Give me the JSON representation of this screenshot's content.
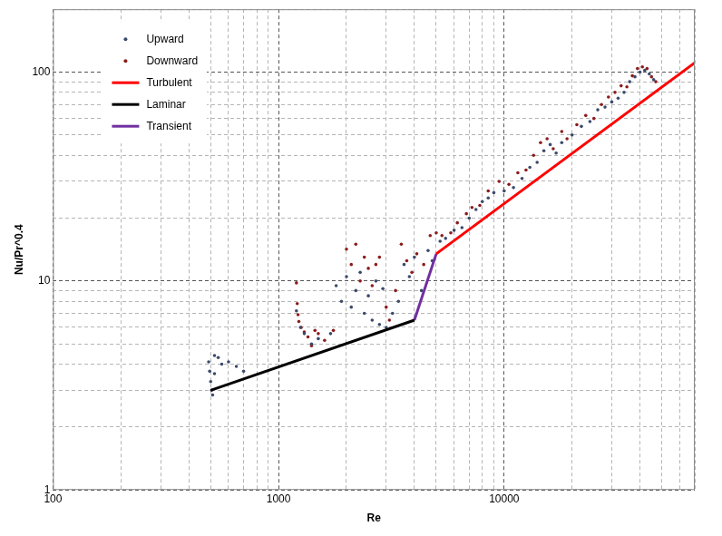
{
  "chart_data": {
    "type": "scatter",
    "x_label": "Re",
    "y_label": "Nu/Pr^0.4",
    "log": true,
    "grid": true,
    "legend": "top-left",
    "xlim": [
      100,
      70000
    ],
    "ylim": [
      1,
      200
    ],
    "xticks": [
      100,
      1000,
      10000
    ],
    "yticks": [
      1,
      10,
      100
    ],
    "series": [
      {
        "name": "Upward",
        "type": "scatter",
        "marker": "circle",
        "color": "#3b4a6b",
        "x": [
          490,
          495,
          500,
          505,
          510,
          520,
          540,
          560,
          600,
          650,
          700,
          520,
          1200,
          1250,
          1300,
          1400,
          1500,
          1700,
          1800,
          1900,
          2000,
          2100,
          2200,
          2300,
          2400,
          2500,
          2600,
          2700,
          2800,
          2900,
          3000,
          3200,
          3400,
          3600,
          3800,
          4000,
          4300,
          4600,
          4800,
          5200,
          5500,
          6000,
          6500,
          7000,
          7500,
          8000,
          8500,
          9000,
          10000,
          11000,
          12000,
          13000,
          14000,
          15000,
          16000,
          17000,
          18000,
          20000,
          22000,
          24000,
          26000,
          28000,
          30000,
          32000,
          34000,
          36000,
          38000,
          40000,
          42000,
          44000,
          46000
        ],
        "y": [
          4.1,
          3.7,
          3.3,
          3.0,
          2.85,
          4.4,
          4.3,
          4.0,
          4.1,
          3.9,
          3.7,
          3.6,
          7.2,
          6.0,
          5.6,
          5.0,
          5.3,
          5.6,
          9.5,
          8.0,
          10.5,
          7.5,
          9.0,
          11.0,
          7.0,
          8.5,
          6.5,
          10.0,
          6.2,
          9.2,
          6.0,
          7.0,
          8.0,
          12.0,
          10.5,
          13.0,
          9.0,
          14.0,
          12.5,
          15.5,
          16,
          17.5,
          18,
          20,
          22,
          24,
          25,
          26.5,
          27,
          28,
          31,
          35,
          37,
          42,
          45,
          41,
          46,
          50,
          55,
          58,
          66,
          68,
          72,
          75,
          80,
          90,
          95,
          100,
          102,
          98,
          92
        ]
      },
      {
        "name": "Downward",
        "type": "scatter",
        "marker": "circle",
        "color": "#8b1c1c",
        "x": [
          1200,
          1210,
          1220,
          1230,
          1260,
          1300,
          1350,
          1400,
          1450,
          1500,
          1600,
          1750,
          2000,
          2100,
          2200,
          2300,
          2400,
          2500,
          2600,
          2700,
          2800,
          3000,
          3100,
          3300,
          3500,
          3700,
          3900,
          4100,
          4400,
          4700,
          5000,
          5300,
          5800,
          6200,
          6800,
          7200,
          7800,
          8500,
          9500,
          10500,
          11500,
          12500,
          13500,
          14500,
          15500,
          16500,
          18000,
          19000,
          21000,
          23000,
          25000,
          27000,
          29000,
          31000,
          33000,
          35000,
          37000,
          39000,
          41000,
          43000,
          45000,
          47000
        ],
        "y": [
          9.8,
          7.8,
          6.9,
          6.4,
          6.0,
          5.7,
          5.4,
          4.9,
          5.8,
          5.6,
          5.2,
          5.8,
          14.2,
          12,
          15,
          10,
          13,
          11.5,
          9.5,
          12,
          13,
          7.5,
          6.5,
          9,
          15,
          12.5,
          11,
          13.5,
          12,
          16.5,
          17,
          16.5,
          17,
          19,
          21,
          22.5,
          23,
          27,
          30,
          29,
          33,
          34,
          40,
          46,
          48,
          43,
          52,
          48,
          56,
          62,
          60,
          70,
          76,
          80,
          86,
          85,
          96,
          104,
          106,
          104,
          95,
          90
        ]
      },
      {
        "name": "Turbulent",
        "type": "line",
        "line_style": "solid",
        "color": "#ff0000",
        "x": [
          5000,
          70000
        ],
        "y": [
          13.5,
          111
        ]
      },
      {
        "name": "Laminar",
        "type": "line",
        "line_style": "solid",
        "color": "#000000",
        "x": [
          500,
          4000
        ],
        "y": [
          3.0,
          6.5
        ]
      },
      {
        "name": "Transient",
        "type": "line",
        "line_style": "solid",
        "color": "#7030a0",
        "x": [
          4000,
          5000
        ],
        "y": [
          6.5,
          13.5
        ]
      }
    ]
  }
}
